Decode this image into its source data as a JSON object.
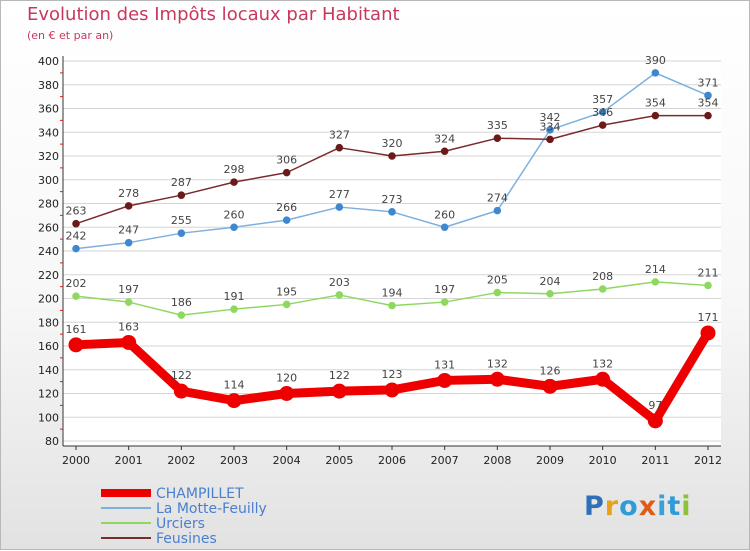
{
  "header": {
    "title": "Evolution des Impôts locaux par Habitant",
    "subtitle": "(en € et par an)"
  },
  "logo": {
    "text": "Proxiti",
    "letter_colors": [
      "#2f6fb8",
      "#e8a21a",
      "#2f9bd8",
      "#e05a18",
      "#3aa0d8",
      "#2f9bd8",
      "#8bc23a"
    ]
  },
  "chart_data": {
    "type": "line",
    "x": [
      "2000",
      "2001",
      "2002",
      "2003",
      "2004",
      "2005",
      "2006",
      "2007",
      "2008",
      "2009",
      "2010",
      "2011",
      "2012"
    ],
    "ylim": [
      80,
      400
    ],
    "yticks": [
      80,
      100,
      120,
      140,
      160,
      180,
      200,
      220,
      240,
      260,
      280,
      300,
      320,
      340,
      360,
      380,
      400
    ],
    "grid": "horizontal",
    "legend_position": "bottom-left",
    "series": [
      {
        "name": "CHAMPILLET",
        "color": "#ee0000",
        "line_color": "#ee0000",
        "emphasis": true,
        "values": [
          161,
          163,
          122,
          114,
          120,
          122,
          123,
          131,
          132,
          126,
          132,
          97,
          171
        ]
      },
      {
        "name": "La Motte-Feuilly",
        "color": "#3f88cf",
        "line_color": "#7eb0dd",
        "emphasis": false,
        "values": [
          242,
          247,
          255,
          260,
          266,
          277,
          273,
          260,
          274,
          342,
          357,
          390,
          371
        ]
      },
      {
        "name": "Urciers",
        "color": "#8ed860",
        "line_color": "#8ed860",
        "emphasis": false,
        "values": [
          202,
          197,
          186,
          191,
          195,
          203,
          194,
          197,
          205,
          204,
          208,
          214,
          211
        ]
      },
      {
        "name": "Feusines",
        "color": "#6b1a1a",
        "line_color": "#7a2b2b",
        "emphasis": false,
        "values": [
          263,
          278,
          287,
          298,
          306,
          327,
          320,
          324,
          335,
          334,
          346,
          354,
          354
        ]
      }
    ]
  }
}
